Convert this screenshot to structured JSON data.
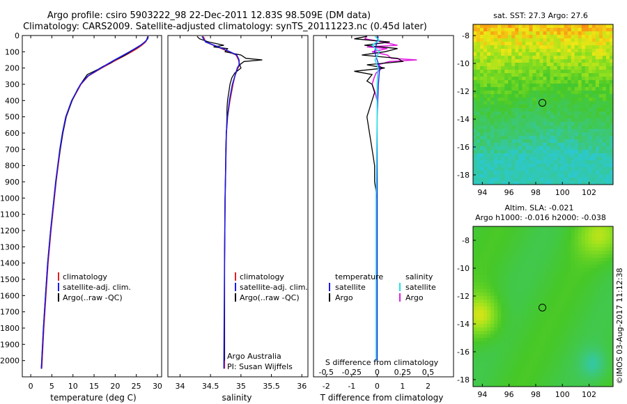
{
  "header": {
    "line1": "Argo profile: csiro 5903222_98 22-Dec-2011 12.83S 98.509E (DM data)",
    "line2": "Climatology: CARS2009. Satellite-adjusted climatology: synTS_20111223.nc (0.45d later)"
  },
  "colors": {
    "climatology": "#e02020",
    "satellite": "#1a1ae6",
    "argo": "#000000",
    "sat_salinity": "#22e0e8",
    "argo_salinity": "#e020e0"
  },
  "chart_data": [
    {
      "type": "line",
      "id": "temperature",
      "xlabel": "temperature (deg C)",
      "ylim": [
        2100,
        0
      ],
      "xlim": [
        -2,
        31
      ],
      "xticks": [
        0,
        5,
        10,
        15,
        20,
        25,
        30
      ],
      "yticks": [
        0,
        100,
        200,
        300,
        400,
        500,
        600,
        700,
        800,
        900,
        1000,
        1100,
        1200,
        1300,
        1400,
        1500,
        1600,
        1700,
        1800,
        1900,
        2000
      ],
      "legend": [
        "climatology",
        "satellite-adj. clim.",
        "Argo(..raw -QC)"
      ],
      "series": [
        {
          "name": "climatology",
          "depth": [
            5,
            20,
            40,
            60,
            80,
            100,
            120,
            150,
            180,
            200,
            250,
            300,
            400,
            500,
            600,
            700,
            800,
            900,
            1000,
            1200,
            1400,
            1600,
            1800,
            2000,
            2050
          ],
          "values": [
            27.9,
            27.6,
            27.2,
            26.3,
            25.2,
            23.9,
            22.5,
            20.3,
            18.2,
            16.8,
            13.6,
            11.9,
            9.8,
            8.4,
            7.6,
            7.0,
            6.5,
            6.0,
            5.6,
            4.8,
            4.1,
            3.6,
            3.1,
            2.7,
            2.6
          ]
        },
        {
          "name": "satellite-adj. clim.",
          "depth": [
            5,
            20,
            40,
            60,
            80,
            100,
            120,
            150,
            180,
            200,
            250,
            300,
            400,
            500,
            600,
            700,
            800,
            900,
            1000,
            1200,
            1400,
            1600,
            1800,
            2000,
            2050
          ],
          "values": [
            27.8,
            27.7,
            27.0,
            26.0,
            24.7,
            23.4,
            22.0,
            19.9,
            17.9,
            16.6,
            13.5,
            11.8,
            9.7,
            8.3,
            7.5,
            6.9,
            6.4,
            5.9,
            5.5,
            4.7,
            4.0,
            3.5,
            3.0,
            2.6,
            2.5
          ]
        },
        {
          "name": "Argo",
          "depth": [
            5,
            15,
            30,
            50,
            70,
            90,
            110,
            130,
            150,
            170,
            190,
            210,
            240,
            280,
            330,
            400,
            500,
            600,
            700,
            800,
            1000,
            1200,
            1400,
            1600,
            1800,
            2000,
            2050
          ],
          "values": [
            27.7,
            27.6,
            27.4,
            26.5,
            25.5,
            24.2,
            23.0,
            21.7,
            20.0,
            18.8,
            17.1,
            15.8,
            13.4,
            12.3,
            11.1,
            9.8,
            8.4,
            7.6,
            7.0,
            6.4,
            5.5,
            4.7,
            4.0,
            3.5,
            3.0,
            2.6,
            2.5
          ]
        }
      ]
    },
    {
      "type": "line",
      "id": "salinity",
      "xlabel": "salinity",
      "xlim": [
        33.8,
        36.1
      ],
      "xticks": [
        34,
        34.5,
        35,
        35.5,
        36
      ],
      "legend": [
        "climatology",
        "satellite-adj. clim.",
        "Argo(..raw -QC)"
      ],
      "annotations": [
        "Argo Australia",
        "PI: Susan Wijffels"
      ],
      "series": [
        {
          "name": "climatology",
          "depth": [
            5,
            40,
            60,
            80,
            100,
            120,
            150,
            180,
            200,
            250,
            300,
            400,
            500,
            600,
            800,
            1000,
            1400,
            2000,
            2050
          ],
          "values": [
            34.38,
            34.42,
            34.55,
            34.68,
            34.8,
            34.92,
            34.96,
            34.98,
            34.95,
            34.9,
            34.87,
            34.82,
            34.78,
            34.76,
            34.75,
            34.74,
            34.73,
            34.73,
            34.73
          ]
        },
        {
          "name": "satellite-adj. clim.",
          "depth": [
            5,
            40,
            60,
            80,
            100,
            120,
            150,
            180,
            200,
            250,
            300,
            400,
            500,
            600,
            800,
            1000,
            1400,
            2000,
            2050
          ],
          "values": [
            34.36,
            34.42,
            34.56,
            34.7,
            34.82,
            34.93,
            34.97,
            34.97,
            34.94,
            34.9,
            34.86,
            34.81,
            34.78,
            34.76,
            34.75,
            34.74,
            34.73,
            34.72,
            34.72
          ]
        },
        {
          "name": "Argo",
          "depth": [
            5,
            20,
            40,
            60,
            70,
            80,
            100,
            120,
            140,
            150,
            160,
            180,
            200,
            230,
            260,
            300,
            350,
            400,
            450,
            500,
            600,
            700,
            800,
            1000,
            1400,
            2000
          ],
          "values": [
            34.28,
            34.32,
            34.47,
            34.72,
            34.55,
            34.78,
            34.74,
            35.0,
            35.08,
            35.35,
            35.05,
            34.98,
            35.0,
            34.9,
            34.85,
            34.82,
            34.8,
            34.78,
            34.77,
            34.77,
            34.76,
            34.75,
            34.75,
            34.74,
            34.73,
            34.73
          ]
        }
      ]
    },
    {
      "type": "line",
      "id": "difference",
      "xlabel": "T difference from climatology",
      "toplabel": "S difference from climatology",
      "xlim": [
        -2.5,
        3
      ],
      "xticks": [
        -2,
        -1,
        0,
        1,
        2
      ],
      "sticks": [
        -0.5,
        -0.25,
        0,
        0.25,
        0.5
      ],
      "slim": [
        -0.625,
        0.75
      ],
      "legend_titles": [
        "temperature",
        "salinity"
      ],
      "legend": [
        "satellite",
        "Argo",
        "satellite",
        "Argo"
      ],
      "series": [
        {
          "name": "T satellite",
          "depth": [
            5,
            100,
            200,
            300,
            500,
            1000,
            1500,
            2000
          ],
          "values": [
            0.05,
            -0.1,
            0.1,
            0.05,
            0,
            0,
            0,
            0
          ]
        },
        {
          "name": "T Argo",
          "depth": [
            5,
            20,
            40,
            60,
            80,
            100,
            120,
            140,
            160,
            180,
            200,
            220,
            240,
            260,
            280,
            300,
            350,
            400,
            450,
            500,
            600,
            700,
            800,
            900,
            1000,
            1200,
            1400,
            1600,
            1800,
            2000
          ],
          "values": [
            -0.4,
            -0.9,
            0.5,
            -0.5,
            0.8,
            0.3,
            -0.6,
            0.8,
            1.0,
            -0.4,
            0.3,
            -0.9,
            -0.2,
            -0.3,
            -0.4,
            -0.2,
            -0.1,
            -0.2,
            -0.3,
            -0.4,
            -0.3,
            -0.2,
            -0.1,
            -0.1,
            0,
            0,
            0,
            0,
            0,
            0
          ]
        },
        {
          "name": "S satellite",
          "depth": [
            5,
            30,
            60,
            100,
            150,
            200,
            300,
            500,
            1000,
            2000
          ],
          "values": [
            -0.02,
            0.02,
            -0.05,
            0.02,
            -0.02,
            0.01,
            0,
            0,
            -0.01,
            -0.01
          ]
        },
        {
          "name": "S Argo",
          "depth": [
            5,
            20,
            40,
            60,
            70,
            80,
            100,
            120,
            140,
            150,
            160,
            180,
            200,
            230,
            260,
            300,
            350,
            400
          ],
          "values": [
            -0.1,
            -0.12,
            0.05,
            0.2,
            -0.1,
            0.1,
            -0.05,
            0.1,
            0.14,
            0.39,
            0.12,
            0.01,
            0.05,
            -0.01,
            -0.03,
            -0.05,
            -0.02,
            0
          ]
        }
      ]
    },
    {
      "type": "heatmap",
      "id": "sst-map",
      "title": "sat. SST: 27.3 Argo: 27.6",
      "xlim": [
        93.3,
        103.8
      ],
      "ylim": [
        -18.7,
        -7.2
      ],
      "xticks": [
        94,
        96,
        98,
        100,
        102
      ],
      "yticks": [
        -8,
        -10,
        -12,
        -14,
        -16,
        -18
      ],
      "marker": [
        98.5,
        -12.83
      ]
    },
    {
      "type": "heatmap",
      "id": "sla-map",
      "title1": "Altim. SLA: -0.021",
      "title2": "Argo h1000: -0.016 h2000: -0.038",
      "xlim": [
        93.3,
        103.8
      ],
      "ylim": [
        -18.5,
        -7.0
      ],
      "xticks": [
        94,
        96,
        98,
        100,
        102
      ],
      "yticks": [
        -8,
        -10,
        -12,
        -14,
        -16,
        -18
      ],
      "marker": [
        98.5,
        -12.83
      ]
    }
  ],
  "footer": {
    "stamp": "©IMOS 03-Aug-2017 11:12:38"
  }
}
